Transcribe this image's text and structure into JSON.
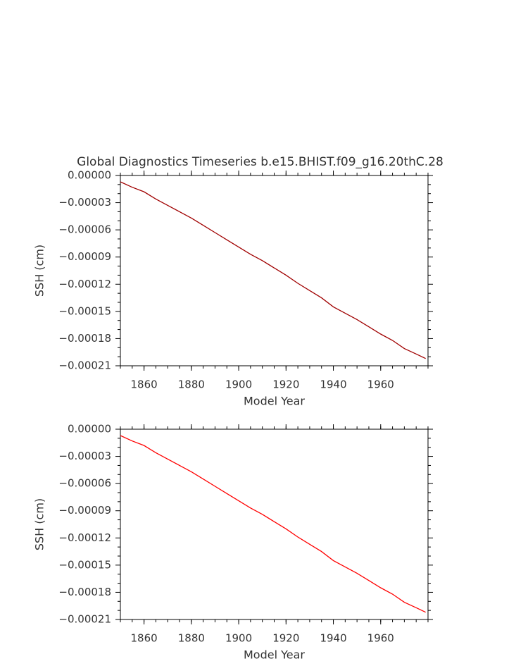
{
  "chart_data": [
    {
      "type": "line",
      "title": "Global Diagnostics Timeseries b.e15.BHIST.f09_g16.20thC.28",
      "x_label": "Model Year",
      "y_label": "SSH (cm)",
      "x": [
        1850,
        1855,
        1860,
        1865,
        1870,
        1875,
        1880,
        1885,
        1890,
        1895,
        1900,
        1905,
        1910,
        1915,
        1920,
        1925,
        1930,
        1935,
        1940,
        1945,
        1950,
        1955,
        1960,
        1965,
        1970,
        1975,
        1979
      ],
      "series": [
        {
          "color": "#a00000",
          "values": [
            -7e-06,
            -1.3e-05,
            -1.8e-05,
            -2.6e-05,
            -3.3e-05,
            -4e-05,
            -4.7e-05,
            -5.5e-05,
            -6.3e-05,
            -7.1e-05,
            -7.9e-05,
            -8.7e-05,
            -9.4e-05,
            -0.000102,
            -0.00011,
            -0.000119,
            -0.000127,
            -0.000135,
            -0.000145,
            -0.000152,
            -0.000159,
            -0.000167,
            -0.000175,
            -0.000182,
            -0.000191,
            -0.000197,
            -0.000202
          ]
        }
      ],
      "xlim": [
        1850,
        1980
      ],
      "xticks": [
        1860,
        1880,
        1900,
        1920,
        1940,
        1960
      ],
      "ylim": [
        -0.00021,
        0
      ],
      "yticks": [
        {
          "value": 0,
          "label": "0.00000"
        },
        {
          "value": -3e-05,
          "label": "−0.00003"
        },
        {
          "value": -6e-05,
          "label": "−0.00006"
        },
        {
          "value": -9e-05,
          "label": "−0.00009"
        },
        {
          "value": -0.00012,
          "label": "−0.00012"
        },
        {
          "value": -0.00015,
          "label": "−0.00015"
        },
        {
          "value": -0.00018,
          "label": "−0.00018"
        },
        {
          "value": -0.00021,
          "label": "−0.00021"
        }
      ]
    },
    {
      "type": "line",
      "x_label": "Model Year",
      "y_label": "SSH (cm)",
      "x": [
        1850,
        1855,
        1860,
        1865,
        1870,
        1875,
        1880,
        1885,
        1890,
        1895,
        1900,
        1905,
        1910,
        1915,
        1920,
        1925,
        1930,
        1935,
        1940,
        1945,
        1950,
        1955,
        1960,
        1965,
        1970,
        1975,
        1979
      ],
      "series": [
        {
          "color": "#ff0000",
          "values": [
            -7e-06,
            -1.3e-05,
            -1.8e-05,
            -2.6e-05,
            -3.3e-05,
            -4e-05,
            -4.7e-05,
            -5.5e-05,
            -6.3e-05,
            -7.1e-05,
            -7.9e-05,
            -8.7e-05,
            -9.4e-05,
            -0.000102,
            -0.00011,
            -0.000119,
            -0.000127,
            -0.000135,
            -0.000145,
            -0.000152,
            -0.000159,
            -0.000167,
            -0.000175,
            -0.000182,
            -0.000191,
            -0.000197,
            -0.000202
          ]
        }
      ],
      "xlim": [
        1850,
        1980
      ],
      "xticks": [
        1860,
        1880,
        1900,
        1920,
        1940,
        1960
      ],
      "ylim": [
        -0.00021,
        0
      ],
      "yticks": [
        {
          "value": 0,
          "label": "0.00000"
        },
        {
          "value": -3e-05,
          "label": "−0.00003"
        },
        {
          "value": -6e-05,
          "label": "−0.00006"
        },
        {
          "value": -9e-05,
          "label": "−0.00009"
        },
        {
          "value": -0.00012,
          "label": "−0.00012"
        },
        {
          "value": -0.00015,
          "label": "−0.00015"
        },
        {
          "value": -0.00018,
          "label": "−0.00018"
        },
        {
          "value": -0.00021,
          "label": "−0.00021"
        }
      ]
    }
  ]
}
